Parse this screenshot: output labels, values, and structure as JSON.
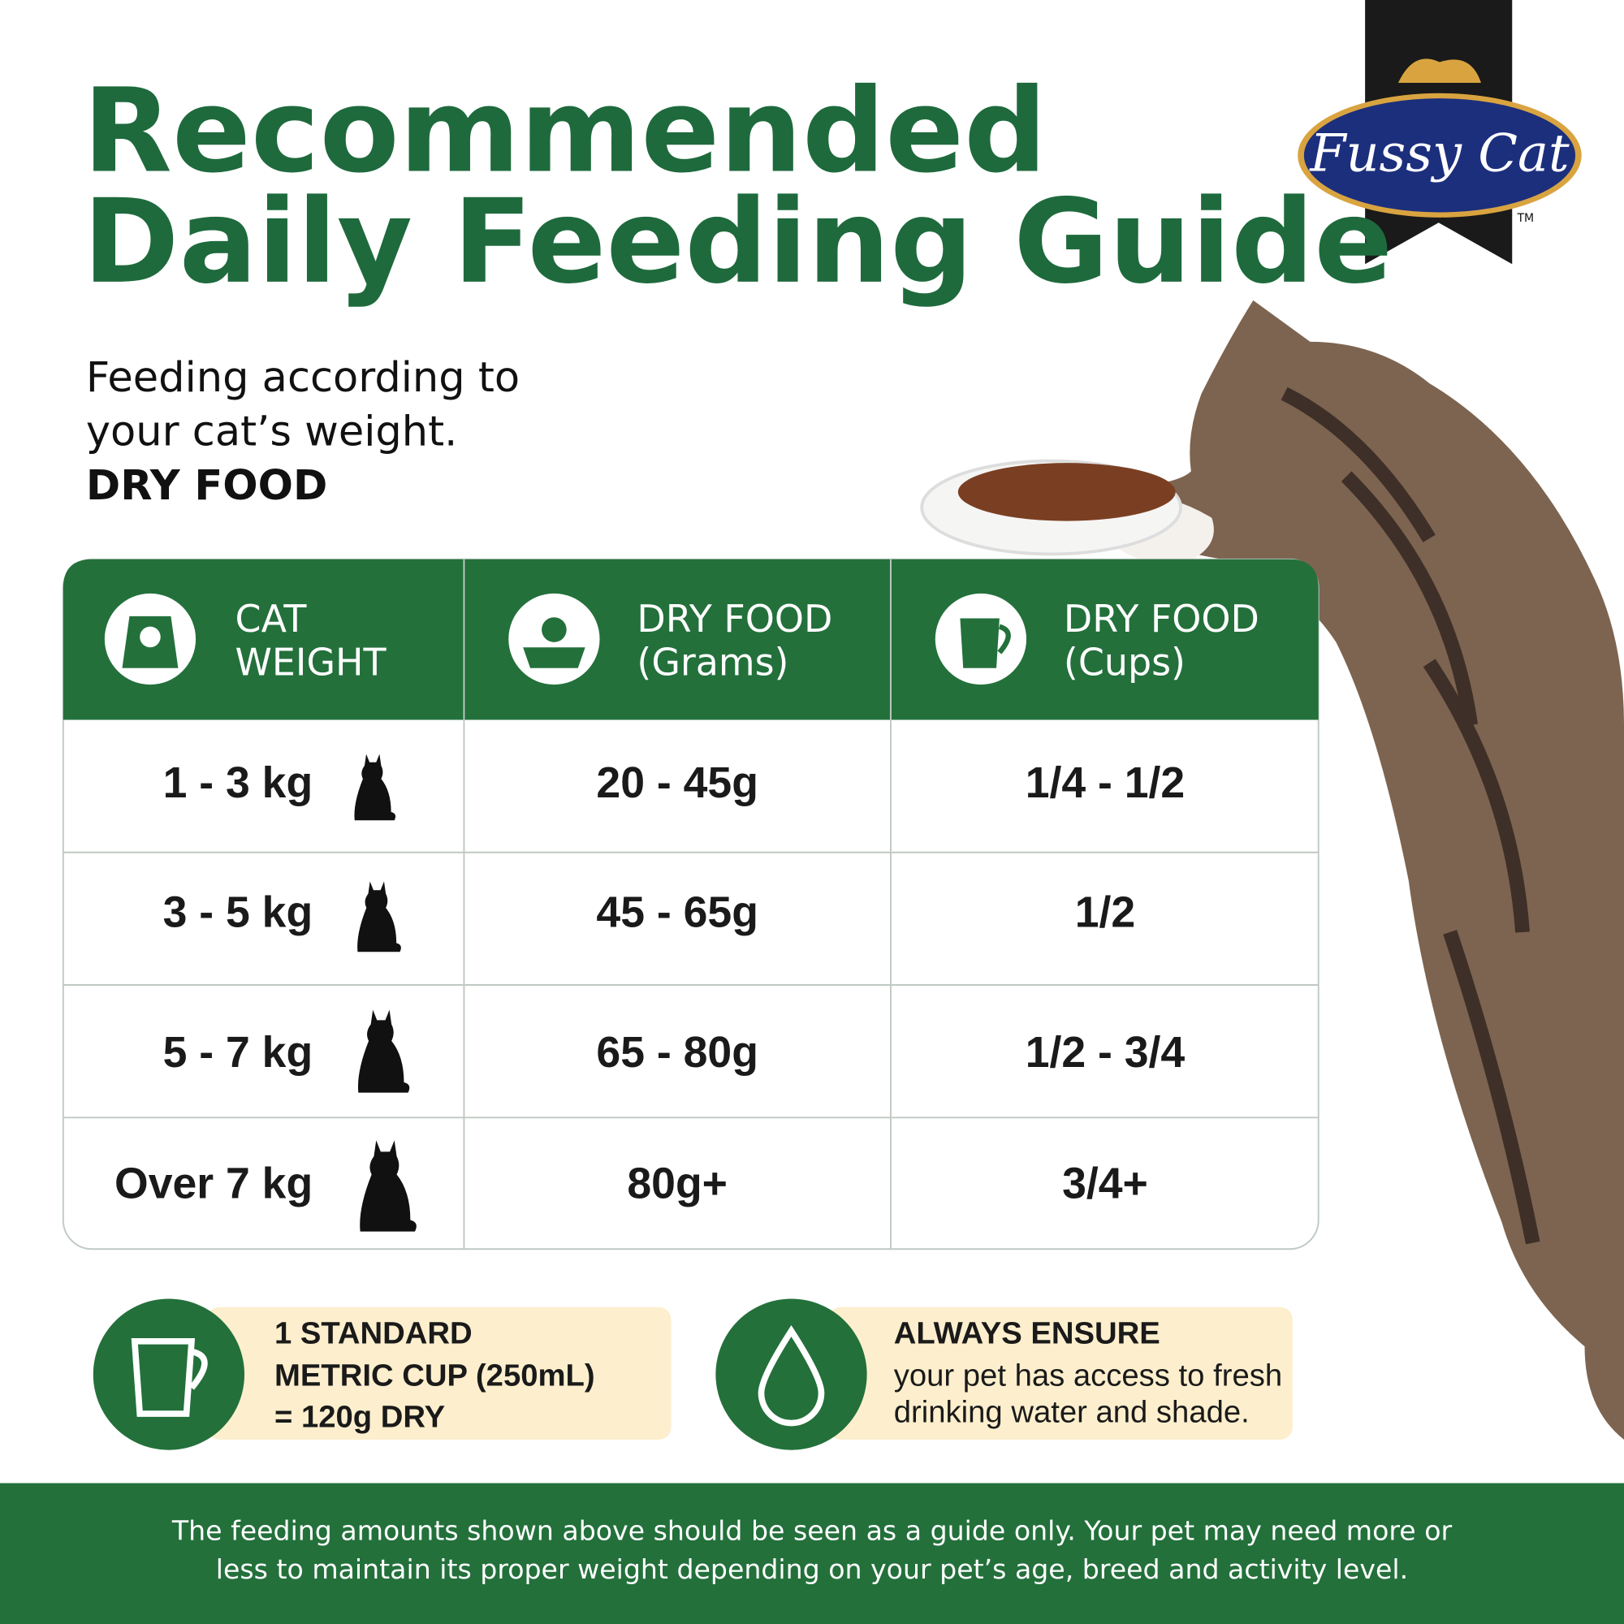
{
  "header": {
    "title": [
      "Recommended",
      "Daily Feeding Guide"
    ],
    "intro": [
      "Feeding according to",
      "your cat’s weight.",
      "DRY FOOD"
    ]
  },
  "logo": {
    "brand": "Fussy Cat",
    "trademark": "TM"
  },
  "table": {
    "headers": [
      [
        "CAT",
        "WEIGHT"
      ],
      [
        "DRY FOOD",
        "(Grams)"
      ],
      [
        "DRY FOOD",
        "(Cups)"
      ]
    ],
    "rows": [
      [
        "1 - 3 kg",
        "20 - 45g",
        "1/4 - 1/2"
      ],
      [
        "3 - 5 kg",
        "45 - 65g",
        "1/2"
      ],
      [
        "5 - 7 kg",
        "65 - 80g",
        "1/2 - 3/4"
      ],
      [
        "Over 7 kg",
        "80g+",
        "3/4+"
      ]
    ]
  },
  "notes": {
    "cup": [
      "1 STANDARD",
      "METRIC CUP (250mL)",
      "= 120g DRY"
    ],
    "water": {
      "heading": "ALWAYS ENSURE",
      "lines": [
        "your pet has access to fresh",
        "drinking water and shade."
      ]
    }
  },
  "footer": [
    "The feeding amounts shown above should be seen as a guide only.  Your pet may need more or",
    "less to maintain its proper weight depending on your pet’s age, breed and activity level."
  ]
}
